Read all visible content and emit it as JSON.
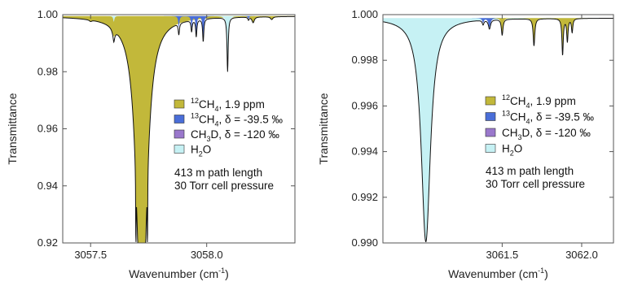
{
  "colors": {
    "ch4_12": "#c2b83a",
    "ch4_13": "#4a6ed8",
    "ch3d": "#9a78cc",
    "h2o": "#c6f1f4",
    "line": "#111111",
    "frame": "#555555"
  },
  "legend": [
    {
      "key": "ch4_12",
      "pre": "",
      "sup": "12",
      "main": "CH",
      "sub": "4",
      "post": ", 1.9 ppm"
    },
    {
      "key": "ch4_13",
      "pre": "",
      "sup": "13",
      "main": "CH",
      "sub": "4",
      "post": ", δ = -39.5 ‰"
    },
    {
      "key": "ch3d",
      "pre": "",
      "sup": "",
      "main": "CH",
      "sub": "3",
      "post": "D, δ = -120 ‰"
    },
    {
      "key": "h2o",
      "pre": "",
      "sup": "",
      "main": "H",
      "sub": "2",
      "post": "O"
    }
  ],
  "notes": [
    "413 m path length",
    "30 Torr cell pressure"
  ],
  "chart_data": [
    {
      "type": "area",
      "xlabel": "Wavenumber (cm-1)",
      "xlabel_main": "Wavenumber (cm",
      "xlabel_sup": "-1",
      "xlabel_tail": ")",
      "ylabel": "Transmittance",
      "xlim": [
        3057.38,
        3058.38
      ],
      "ylim": [
        0.92,
        1.0
      ],
      "xticks": [
        3057.5,
        3058.0
      ],
      "xtick_labels": [
        "3057.5",
        "3058.0"
      ],
      "yticks": [
        0.92,
        0.94,
        0.96,
        0.98,
        1.0
      ],
      "ytick_labels": [
        "0.92",
        "0.94",
        "0.96",
        "0.98",
        "1.00"
      ],
      "baseline": 0.9995,
      "series": [
        {
          "key": "ch4_12",
          "peaks": [
            [
              3057.5,
              0.0005,
              0.006
            ],
            [
              3057.6,
              0.0025,
              0.008
            ],
            [
              3057.72,
              0.12,
              0.024
            ],
            [
              3057.695,
              0.03,
              0.0008
            ],
            [
              3057.745,
              0.03,
              0.0008
            ],
            [
              3057.725,
              0.03,
              0.0008
            ],
            [
              3058.2,
              0.002,
              0.006
            ],
            [
              3058.28,
              0.001,
              0.006
            ]
          ]
        },
        {
          "key": "ch4_13",
          "peaks": [
            [
              3057.88,
              0.004,
              0.003
            ],
            [
              3057.935,
              0.004,
              0.003
            ],
            [
              3057.955,
              0.006,
              0.003
            ],
            [
              3057.985,
              0.008,
              0.003
            ],
            [
              3058.18,
              0.001,
              0.003
            ]
          ]
        },
        {
          "key": "h2o",
          "peaks": [
            [
              3057.6,
              0.002,
              0.003
            ],
            [
              3058.09,
              0.019,
              0.003
            ]
          ]
        }
      ]
    },
    {
      "type": "area",
      "xlabel": "Wavenumber (cm-1)",
      "xlabel_main": "Wavenumber (cm",
      "xlabel_sup": "-1",
      "xlabel_tail": ")",
      "ylabel": "Transmittance",
      "xlim": [
        3060.75,
        3062.2
      ],
      "ylim": [
        0.99,
        1.0
      ],
      "xticks": [
        3061.5,
        3062.0
      ],
      "xtick_labels": [
        "3061.5",
        "3062.0"
      ],
      "yticks": [
        0.99,
        0.992,
        0.994,
        0.996,
        0.998,
        1.0
      ],
      "ytick_labels": [
        "0.990",
        "0.992",
        "0.994",
        "0.996",
        "0.998",
        "1.000"
      ],
      "baseline": 0.99985,
      "series": [
        {
          "key": "h2o",
          "peaks": [
            [
              3061.02,
              0.0098,
              0.035
            ]
          ]
        },
        {
          "key": "ch4_13",
          "peaks": [
            [
              3061.38,
              0.0002,
              0.006
            ],
            [
              3061.42,
              0.0004,
              0.008
            ]
          ]
        },
        {
          "key": "ch4_12",
          "peaks": [
            [
              3061.5,
              0.0007,
              0.006
            ],
            [
              3061.7,
              0.0012,
              0.006
            ],
            [
              3061.88,
              0.0016,
              0.005
            ],
            [
              3061.91,
              0.001,
              0.005
            ],
            [
              3061.94,
              0.0006,
              0.005
            ]
          ]
        }
      ]
    }
  ]
}
